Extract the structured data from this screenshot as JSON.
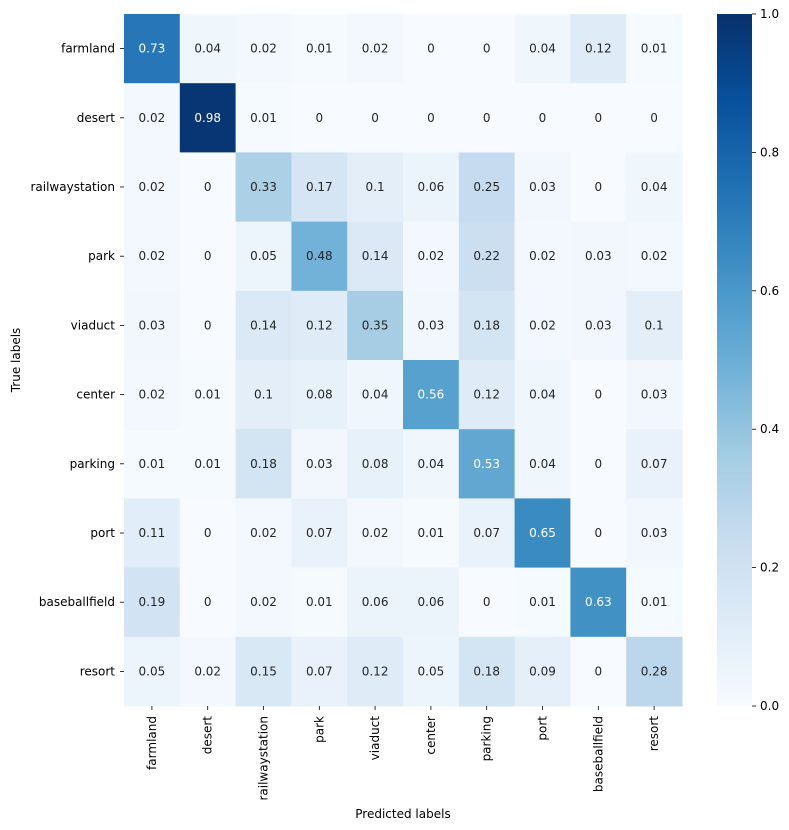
{
  "chart_data": {
    "type": "heatmap",
    "title": "",
    "xlabel": "Predicted labels",
    "ylabel": "True labels",
    "x_categories": [
      "farmland",
      "desert",
      "railwaystation",
      "park",
      "viaduct",
      "center",
      "parking",
      "port",
      "baseballfield",
      "resort"
    ],
    "y_categories": [
      "farmland",
      "desert",
      "railwaystation",
      "park",
      "viaduct",
      "center",
      "parking",
      "port",
      "baseballfield",
      "resort"
    ],
    "values": [
      [
        0.73,
        0.04,
        0.02,
        0.01,
        0.02,
        0,
        0,
        0.04,
        0.12,
        0.01
      ],
      [
        0.02,
        0.98,
        0.01,
        0,
        0,
        0,
        0,
        0,
        0,
        0
      ],
      [
        0.02,
        0,
        0.33,
        0.17,
        0.1,
        0.06,
        0.25,
        0.03,
        0,
        0.04
      ],
      [
        0.02,
        0,
        0.05,
        0.48,
        0.14,
        0.02,
        0.22,
        0.02,
        0.03,
        0.02
      ],
      [
        0.03,
        0,
        0.14,
        0.12,
        0.35,
        0.03,
        0.18,
        0.02,
        0.03,
        0.1
      ],
      [
        0.02,
        0.01,
        0.1,
        0.08,
        0.04,
        0.56,
        0.12,
        0.04,
        0,
        0.03
      ],
      [
        0.01,
        0.01,
        0.18,
        0.03,
        0.08,
        0.04,
        0.53,
        0.04,
        0,
        0.07
      ],
      [
        0.11,
        0,
        0.02,
        0.07,
        0.02,
        0.01,
        0.07,
        0.65,
        0,
        0.03
      ],
      [
        0.19,
        0,
        0.02,
        0.01,
        0.06,
        0.06,
        0,
        0.01,
        0.63,
        0.01
      ],
      [
        0.05,
        0.02,
        0.15,
        0.07,
        0.12,
        0.05,
        0.18,
        0.09,
        0,
        0.28
      ]
    ],
    "colormap": "Blues",
    "colorbar": {
      "range": [
        0.0,
        1.0
      ],
      "ticks": [
        0.0,
        0.2,
        0.4,
        0.6,
        0.8,
        1.0
      ],
      "tick_labels": [
        "0.0",
        "0.2",
        "0.4",
        "0.6",
        "0.8",
        "1.0"
      ]
    },
    "text_dark_color": "#262626",
    "text_light_color": "#ffffff"
  }
}
